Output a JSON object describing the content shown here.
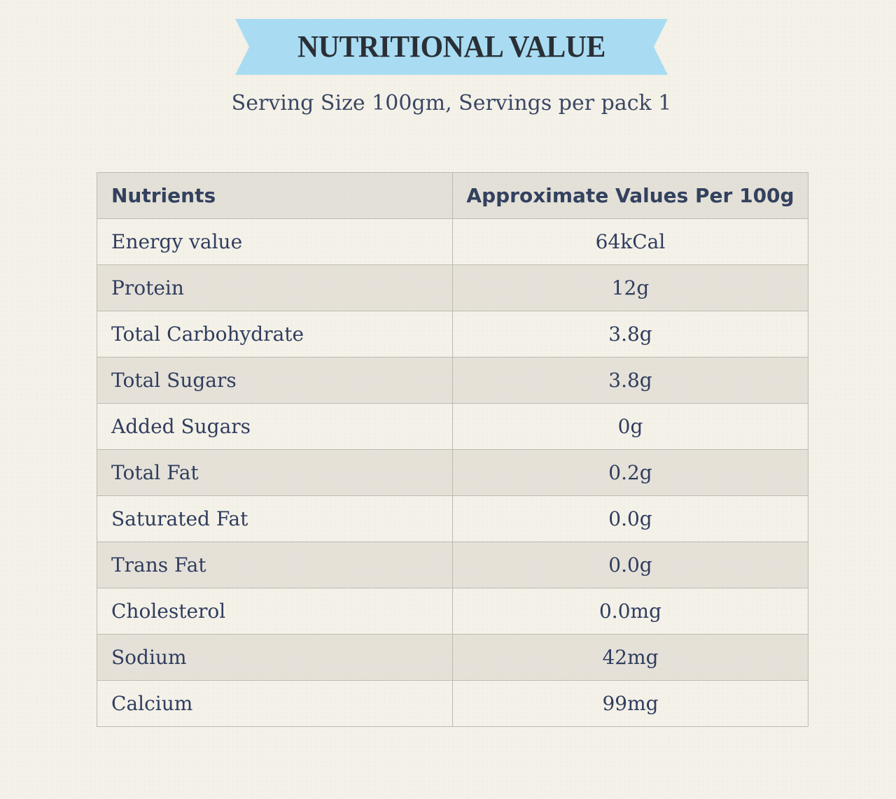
{
  "banner": {
    "title": "NUTRITIONAL VALUE",
    "color": "#a9dcf2"
  },
  "subtitle": "Serving Size 100gm, Servings per pack 1",
  "table": {
    "headers": [
      "Nutrients",
      "Approximate Values Per 100g"
    ],
    "rows": [
      {
        "nutrient": "Energy value",
        "value": "64kCal"
      },
      {
        "nutrient": "Protein",
        "value": "12g"
      },
      {
        "nutrient": "Total Carbohydrate",
        "value": "3.8g"
      },
      {
        "nutrient": "Total Sugars",
        "value": "3.8g"
      },
      {
        "nutrient": "Added Sugars",
        "value": "0g"
      },
      {
        "nutrient": "Total Fat",
        "value": "0.2g"
      },
      {
        "nutrient": "Saturated Fat",
        "value": "0.0g"
      },
      {
        "nutrient": "Trans Fat",
        "value": "0.0g"
      },
      {
        "nutrient": "Cholesterol",
        "value": "0.0mg"
      },
      {
        "nutrient": "Sodium",
        "value": "42mg"
      },
      {
        "nutrient": "Calcium",
        "value": "99mg"
      }
    ]
  }
}
